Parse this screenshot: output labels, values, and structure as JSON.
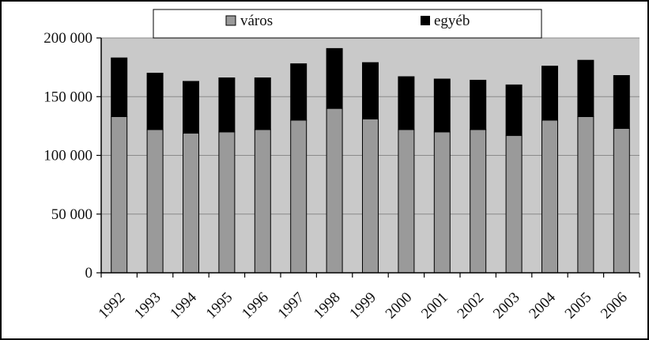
{
  "chart_data": {
    "type": "bar",
    "stacked": true,
    "categories": [
      "1992",
      "1993",
      "1994",
      "1995",
      "1996",
      "1997",
      "1998",
      "1999",
      "2000",
      "2001",
      "2002",
      "2003",
      "2004",
      "2005",
      "2006"
    ],
    "series": [
      {
        "name": "város",
        "color": "#9a9a9a",
        "values": [
          133000,
          122000,
          119000,
          120000,
          122000,
          130000,
          140000,
          131000,
          122000,
          120000,
          122000,
          117000,
          130000,
          133000,
          123000
        ]
      },
      {
        "name": "egyéb",
        "color": "#000000",
        "values": [
          50000,
          48000,
          44000,
          46000,
          44000,
          48000,
          51000,
          48000,
          45000,
          45000,
          42000,
          43000,
          46000,
          48000,
          45000
        ]
      }
    ],
    "y_ticks": [
      "0",
      "50 000",
      "100 000",
      "150 000",
      "200 000"
    ],
    "ylim": [
      0,
      200000
    ],
    "plot_background": "#c9c9c9",
    "grid": true,
    "legend_position": "top"
  }
}
